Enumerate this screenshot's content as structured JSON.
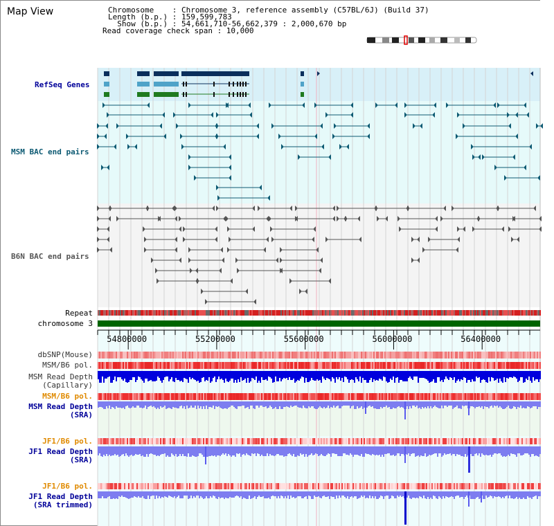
{
  "header": {
    "title": "Map View",
    "chromosome_line": "Chromosome    : Chromosome 3, reference assembly (C57BL/6J) (Build 37)",
    "length_line": "Length (b.p.) : 159,599,783",
    "show_line": "  Show (b.p.) : 54,661,710-56,662,379 : 2,000,670 bp",
    "coverage_line": "Read coverage check span : 10,000"
  },
  "tracks": {
    "refseq": "RefSeq Genes",
    "msm_bac": "MSM BAC end pairs",
    "b6n_bac": "B6N BAC end pairs",
    "repeat": "Repeat",
    "chromosome": "chromosome 3",
    "dbsnp": "dbSNP(Mouse)",
    "msm_pol": "MSM/B6 pol.",
    "msm_depth_cap_1": "MSM Read Depth",
    "msm_depth_cap_2": "(Capillary)",
    "msm_pol2": "MSM/B6 pol.",
    "msm_depth_sra_1": "MSM Read Depth",
    "msm_depth_sra_2": "(SRA)",
    "jf1_pol": "JF1/B6 pol.",
    "jf1_depth_sra_1": "JF1 Read Depth",
    "jf1_depth_sra_2": "(SRA)",
    "jf1_pol2": "JF1/B6 pol.",
    "jf1_depth_trim_1": "JF1 Read Depth",
    "jf1_depth_trim_2": "(SRA trimmed)"
  },
  "axis": {
    "ticks": [
      "54800000",
      "55200000",
      "55600000",
      "56000000",
      "56400000"
    ],
    "tick_values": [
      54800000,
      55200000,
      55600000,
      56000000,
      56400000
    ],
    "range": [
      54661710,
      56662379
    ]
  },
  "colors": {
    "teal": "#0d5a73",
    "gray": "#555555",
    "refseq_navy": "#0a2e5c",
    "refseq_blue": "#4fa3c8",
    "refseq_green": "#1f7a1f",
    "chromosome": "#006400",
    "depth_dark": "#0000dd",
    "depth_light": "#7d7df0",
    "orange_label": "#e08a00",
    "blue_label": "#000099"
  }
}
